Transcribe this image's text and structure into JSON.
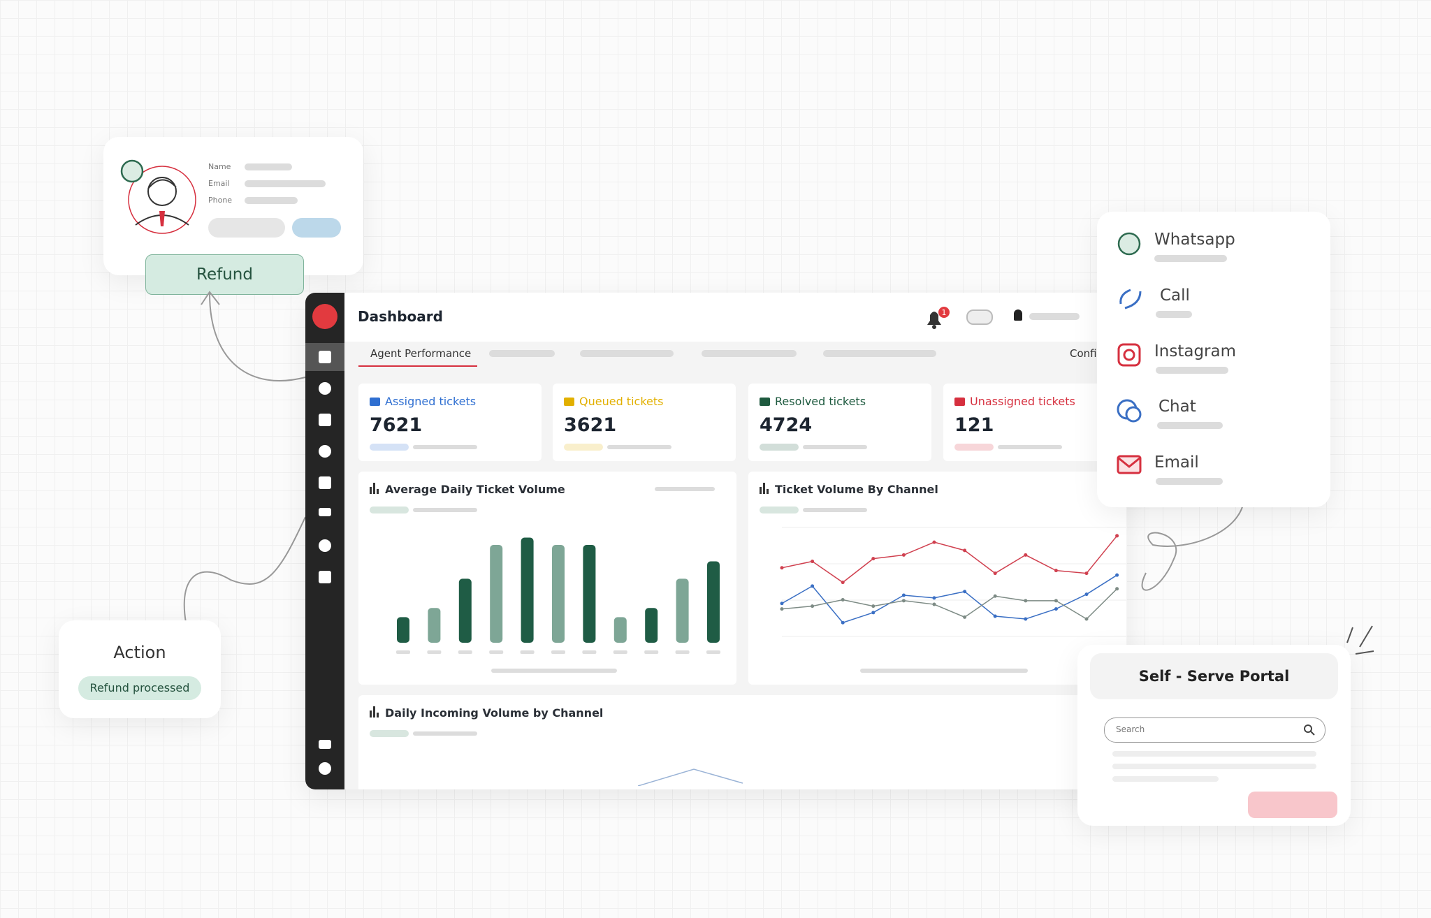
{
  "contact_card": {
    "fields": [
      "Name",
      "Email",
      "Phone"
    ],
    "button": "Refund"
  },
  "action_card": {
    "title": "Action",
    "status": "Refund processed"
  },
  "dashboard": {
    "title": "Dashboard",
    "notification_count": 1,
    "tabs": [
      "Agent Performance",
      "Confi"
    ],
    "stats": [
      {
        "label": "Assigned tickets",
        "value": 7621,
        "color": "#2f6fd1"
      },
      {
        "label": "Queued tickets",
        "value": 3621,
        "color": "#e2b000"
      },
      {
        "label": "Resolved tickets",
        "value": 4724,
        "color": "#1e5a3f"
      },
      {
        "label": "Unassigned tickets",
        "value": 121,
        "color": "#d6303f"
      }
    ],
    "charts": [
      {
        "type": "bar",
        "title": "Average Daily Ticket Volume",
        "ylim": [
          0,
          120
        ],
        "values": [
          28,
          38,
          70,
          107,
          115,
          107,
          107,
          28,
          38,
          70,
          89
        ],
        "colors": [
          "#1f5c45",
          "#7ea696",
          "#1f5c45",
          "#7ea696",
          "#1f5c45",
          "#7ea696",
          "#1f5c45",
          "#7ea696",
          "#1f5c45",
          "#7ea696",
          "#1f5c45"
        ]
      },
      {
        "type": "line",
        "title": "Ticket Volume By Channel",
        "ylim": [
          0,
          120
        ],
        "series": [
          {
            "color": "#d0404f",
            "values": [
              82,
              89,
              66,
              92,
              96,
              110,
              101,
              76,
              96,
              79,
              76,
              117
            ]
          },
          {
            "color": "#3a6fc4",
            "values": [
              43,
              62,
              22,
              33,
              52,
              49,
              56,
              29,
              26,
              37,
              53,
              74
            ]
          },
          {
            "color": "#7d8b85",
            "values": [
              37,
              40,
              47,
              40,
              46,
              42,
              28,
              51,
              46,
              46,
              26,
              59
            ]
          }
        ]
      },
      {
        "type": "line",
        "title": "Daily Incoming Volume by Channel"
      }
    ]
  },
  "channels": [
    "Whatsapp",
    "Call",
    "Instagram",
    "Chat",
    "Email"
  ],
  "portal": {
    "title": "Self - Serve Portal",
    "search_placeholder": "Search"
  }
}
